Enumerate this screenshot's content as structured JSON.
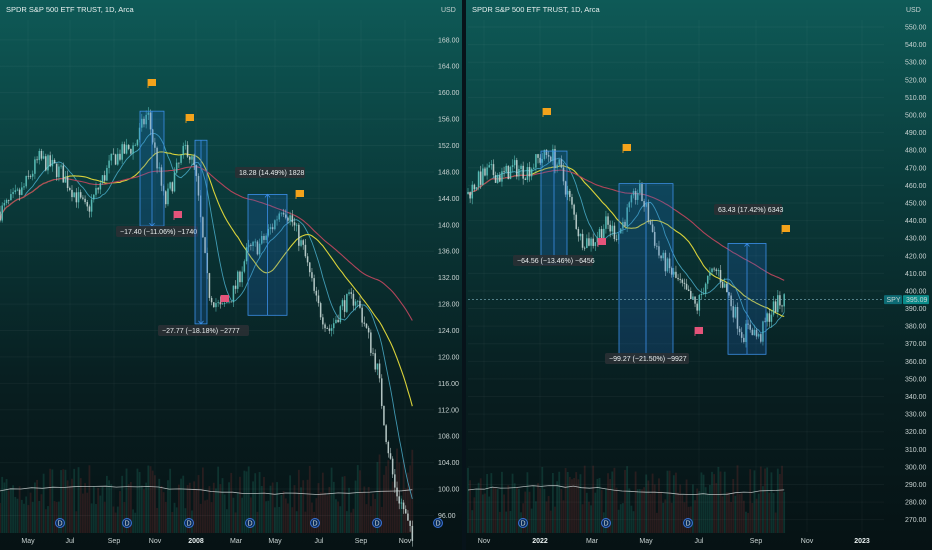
{
  "chart_data": [
    {
      "type": "candlestick",
      "title": "SPDR S&P 500 ETF TRUST, 1D, Arca",
      "currency": "USD",
      "yticks": [
        96,
        100,
        104,
        108,
        112,
        116,
        120,
        124,
        128,
        132,
        136,
        140,
        144,
        148,
        152,
        156,
        160,
        164,
        168
      ],
      "ylim": [
        93.5,
        171
      ],
      "xticks": [
        "May",
        "Jul",
        "Sep",
        "Nov",
        "2008",
        "Mar",
        "May",
        "Jul",
        "Sep",
        "Nov"
      ],
      "dividends": 7,
      "measurements": [
        {
          "label": "−17.40 (−11.06%) −1740",
          "top": 157.2,
          "bottom": 139.8,
          "direction": "down"
        },
        {
          "label": "−27.77 (−18.18%) −2777",
          "top": 152.8,
          "bottom": 125.0,
          "direction": "down"
        },
        {
          "label": "18.28 (14.49%) 1828",
          "top": 144.6,
          "bottom": 126.3,
          "direction": "up"
        }
      ],
      "price_path": [
        [
          0,
          142
        ],
        [
          0.05,
          145
        ],
        [
          0.09,
          150
        ],
        [
          0.14,
          148
        ],
        [
          0.2,
          142
        ],
        [
          0.26,
          150
        ],
        [
          0.31,
          152
        ],
        [
          0.34,
          157
        ],
        [
          0.36,
          150
        ],
        [
          0.38,
          143
        ],
        [
          0.4,
          147
        ],
        [
          0.43,
          152
        ],
        [
          0.45,
          148
        ],
        [
          0.48,
          130
        ],
        [
          0.51,
          127
        ],
        [
          0.54,
          130
        ],
        [
          0.57,
          136
        ],
        [
          0.6,
          137
        ],
        [
          0.63,
          140
        ],
        [
          0.65,
          143
        ],
        [
          0.67,
          141
        ],
        [
          0.7,
          136
        ],
        [
          0.73,
          128
        ],
        [
          0.76,
          124
        ],
        [
          0.79,
          128
        ],
        [
          0.82,
          129
        ],
        [
          0.84,
          125
        ],
        [
          0.87,
          118
        ],
        [
          0.89,
          108
        ],
        [
          0.91,
          100
        ],
        [
          0.93,
          97
        ],
        [
          0.95,
          92
        ]
      ]
    },
    {
      "type": "candlestick",
      "title": "SPDR S&P 500 ETF TRUST, 1D, Arca",
      "currency": "USD",
      "yticks": [
        270,
        280,
        290,
        300,
        310,
        320,
        330,
        340,
        350,
        360,
        370,
        380,
        390,
        400,
        410,
        420,
        430,
        440,
        450,
        460,
        470,
        480,
        490,
        500,
        510,
        520,
        530,
        540,
        550
      ],
      "ylim": [
        263,
        554
      ],
      "xticks": [
        "Nov",
        "2022",
        "Mar",
        "May",
        "Jul",
        "Sep",
        "Nov",
        "2023"
      ],
      "last_price": {
        "symbol": "SPY",
        "value": "395.09"
      },
      "dividends": 4,
      "measurements": [
        {
          "label": "−64.56 (−13.46%) −6456",
          "top": 479.5,
          "bottom": 415.0,
          "direction": "down"
        },
        {
          "label": "−99.27 (−21.50%) −9927",
          "top": 461.0,
          "bottom": 362.0,
          "direction": "down"
        },
        {
          "label": "63.43 (17.42%) 6343",
          "top": 427.0,
          "bottom": 364.0,
          "direction": "up"
        }
      ],
      "price_path": [
        [
          0,
          455
        ],
        [
          0.02,
          462
        ],
        [
          0.05,
          468
        ],
        [
          0.08,
          465
        ],
        [
          0.11,
          470
        ],
        [
          0.14,
          468
        ],
        [
          0.17,
          475
        ],
        [
          0.2,
          478
        ],
        [
          0.22,
          470
        ],
        [
          0.24,
          455
        ],
        [
          0.27,
          430
        ],
        [
          0.3,
          428
        ],
        [
          0.33,
          438
        ],
        [
          0.36,
          432
        ],
        [
          0.39,
          448
        ],
        [
          0.41,
          458
        ],
        [
          0.43,
          445
        ],
        [
          0.46,
          420
        ],
        [
          0.49,
          410
        ],
        [
          0.52,
          400
        ],
        [
          0.55,
          390
        ],
        [
          0.57,
          405
        ],
        [
          0.6,
          412
        ],
        [
          0.63,
          395
        ],
        [
          0.66,
          375
        ],
        [
          0.68,
          380
        ],
        [
          0.7,
          372
        ],
        [
          0.72,
          385
        ],
        [
          0.74,
          392
        ],
        [
          0.76,
          395
        ]
      ]
    }
  ]
}
